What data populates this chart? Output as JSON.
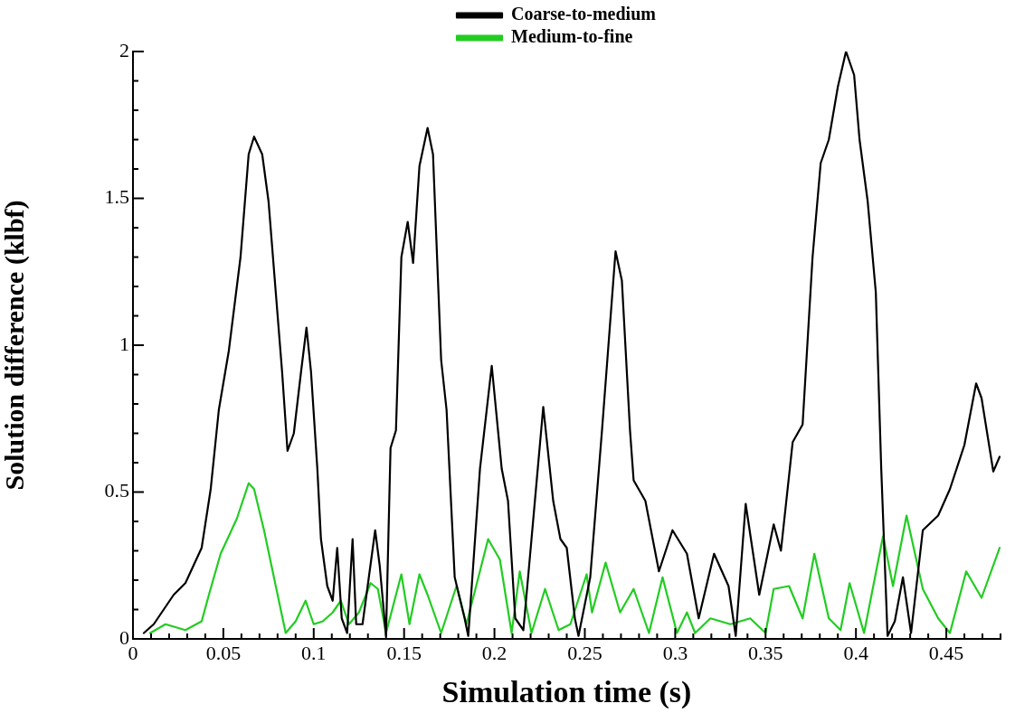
{
  "chart_data": {
    "type": "line",
    "xlabel": "Simulation time (s)",
    "ylabel": "Solution difference (klbf)",
    "xlim": [
      0,
      0.48
    ],
    "xticks": [
      0,
      {
        "value": 0.01,
        "label": null
      },
      {
        "value": 0.02,
        "label": null
      },
      {
        "value": 0.03,
        "label": null
      },
      {
        "value": 0.04,
        "label": null
      },
      0.05,
      {
        "value": 0.06,
        "label": null
      },
      {
        "value": 0.07,
        "label": null
      },
      {
        "value": 0.08,
        "label": null
      },
      {
        "value": 0.09,
        "label": null
      },
      0.1,
      {
        "value": 0.11,
        "label": null
      },
      {
        "value": 0.12,
        "label": null
      },
      {
        "value": 0.13,
        "label": null
      },
      {
        "value": 0.14,
        "label": null
      },
      0.15,
      {
        "value": 0.16,
        "label": null
      },
      {
        "value": 0.17,
        "label": null
      },
      {
        "value": 0.18,
        "label": null
      },
      {
        "value": 0.19,
        "label": null
      },
      0.2,
      {
        "value": 0.21,
        "label": null
      },
      {
        "value": 0.22,
        "label": null
      },
      {
        "value": 0.23,
        "label": null
      },
      {
        "value": 0.24,
        "label": null
      },
      0.25,
      {
        "value": 0.26,
        "label": null
      },
      {
        "value": 0.27,
        "label": null
      },
      {
        "value": 0.28,
        "label": null
      },
      {
        "value": 0.29,
        "label": null
      },
      0.3,
      {
        "value": 0.31,
        "label": null
      },
      {
        "value": 0.32,
        "label": null
      },
      {
        "value": 0.33,
        "label": null
      },
      {
        "value": 0.34,
        "label": null
      },
      0.35,
      {
        "value": 0.36,
        "label": null
      },
      {
        "value": 0.37,
        "label": null
      },
      {
        "value": 0.38,
        "label": null
      },
      {
        "value": 0.39,
        "label": null
      },
      0.4,
      {
        "value": 0.41,
        "label": null
      },
      {
        "value": 0.42,
        "label": null
      },
      {
        "value": 0.43,
        "label": null
      },
      {
        "value": 0.44,
        "label": null
      },
      0.45,
      {
        "value": 0.46,
        "label": null
      },
      {
        "value": 0.47,
        "label": null
      },
      {
        "value": 0.48,
        "label": null
      }
    ],
    "ylim": [
      0,
      2
    ],
    "yticks": [
      0,
      {
        "value": 0.1,
        "label": null
      },
      {
        "value": 0.2,
        "label": null
      },
      {
        "value": 0.3,
        "label": null
      },
      {
        "value": 0.4,
        "label": null
      },
      0.5,
      {
        "value": 0.6,
        "label": null
      },
      {
        "value": 0.7,
        "label": null
      },
      {
        "value": 0.8,
        "label": null
      },
      {
        "value": 0.9,
        "label": null
      },
      1,
      {
        "value": 1.1,
        "label": null
      },
      {
        "value": 1.2,
        "label": null
      },
      {
        "value": 1.3,
        "label": null
      },
      {
        "value": 1.4,
        "label": null
      },
      1.5,
      {
        "value": 1.6,
        "label": null
      },
      {
        "value": 1.7,
        "label": null
      },
      {
        "value": 1.8,
        "label": null
      },
      {
        "value": 1.9,
        "label": null
      },
      2
    ],
    "grid": false,
    "legend": "top",
    "marker": "none",
    "line_style": "solid",
    "series": [
      {
        "name": "Coarse-to-medium",
        "color": "#000000",
        "x": [
          0.006,
          0.0115,
          0.0225,
          0.029,
          0.038,
          0.043,
          0.0475,
          0.053,
          0.0595,
          0.064,
          0.067,
          0.0715,
          0.075,
          0.079,
          0.0825,
          0.0855,
          0.089,
          0.093,
          0.096,
          0.0985,
          0.102,
          0.104,
          0.1075,
          0.1105,
          0.113,
          0.1155,
          0.1185,
          0.1215,
          0.1235,
          0.127,
          0.134,
          0.1365,
          0.14,
          0.1425,
          0.1455,
          0.1485,
          0.152,
          0.155,
          0.1585,
          0.163,
          0.166,
          0.1705,
          0.1735,
          0.178,
          0.1835,
          0.1855,
          0.192,
          0.1985,
          0.204,
          0.2075,
          0.2115,
          0.216,
          0.2205,
          0.227,
          0.2325,
          0.2365,
          0.24,
          0.2445,
          0.2465,
          0.253,
          0.2595,
          0.267,
          0.2705,
          0.275,
          0.277,
          0.2835,
          0.291,
          0.2985,
          0.3065,
          0.313,
          0.3215,
          0.3295,
          0.3335,
          0.339,
          0.3465,
          0.3545,
          0.3585,
          0.365,
          0.3705,
          0.376,
          0.3805,
          0.385,
          0.39,
          0.3945,
          0.399,
          0.402,
          0.4065,
          0.411,
          0.414,
          0.4175,
          0.4215,
          0.426,
          0.4305,
          0.437,
          0.4455,
          0.452,
          0.46,
          0.4665,
          0.4695,
          0.476,
          0.4795
        ],
        "values": [
          0.02,
          0.05,
          0.15,
          0.19,
          0.31,
          0.51,
          0.78,
          0.98,
          1.3,
          1.65,
          1.71,
          1.65,
          1.49,
          1.18,
          0.91,
          0.64,
          0.7,
          0.91,
          1.06,
          0.91,
          0.58,
          0.34,
          0.18,
          0.13,
          0.31,
          0.07,
          0.02,
          0.34,
          0.05,
          0.05,
          0.37,
          0.25,
          0.01,
          0.65,
          0.71,
          1.3,
          1.42,
          1.28,
          1.61,
          1.74,
          1.65,
          0.95,
          0.78,
          0.21,
          0.07,
          0.01,
          0.58,
          0.93,
          0.58,
          0.47,
          0.07,
          0.03,
          0.34,
          0.79,
          0.47,
          0.34,
          0.31,
          0.07,
          0.01,
          0.21,
          0.71,
          1.32,
          1.22,
          0.71,
          0.54,
          0.47,
          0.23,
          0.37,
          0.29,
          0.07,
          0.29,
          0.18,
          0.01,
          0.46,
          0.15,
          0.39,
          0.3,
          0.67,
          0.73,
          1.3,
          1.62,
          1.7,
          1.88,
          2.0,
          1.92,
          1.7,
          1.49,
          1.18,
          0.58,
          0.01,
          0.06,
          0.21,
          0.02,
          0.37,
          0.42,
          0.51,
          0.66,
          0.87,
          0.82,
          0.57,
          0.62
        ]
      },
      {
        "name": "Medium-to-fine",
        "color": "#22cc22",
        "x": [
          0.0095,
          0.018,
          0.029,
          0.038,
          0.042,
          0.0485,
          0.0575,
          0.064,
          0.067,
          0.0725,
          0.079,
          0.0845,
          0.09,
          0.0955,
          0.1,
          0.105,
          0.1105,
          0.115,
          0.1195,
          0.125,
          0.1315,
          0.1355,
          0.14,
          0.1485,
          0.153,
          0.1585,
          0.163,
          0.1705,
          0.179,
          0.1845,
          0.1965,
          0.203,
          0.2095,
          0.214,
          0.2205,
          0.228,
          0.2355,
          0.242,
          0.251,
          0.254,
          0.2615,
          0.2695,
          0.277,
          0.2855,
          0.293,
          0.301,
          0.3065,
          0.311,
          0.3195,
          0.3305,
          0.3415,
          0.35,
          0.3545,
          0.363,
          0.3705,
          0.377,
          0.385,
          0.3915,
          0.3965,
          0.4045,
          0.415,
          0.4205,
          0.428,
          0.437,
          0.4455,
          0.452,
          0.461,
          0.4695,
          0.4795
        ],
        "values": [
          0.02,
          0.05,
          0.03,
          0.06,
          0.15,
          0.29,
          0.41,
          0.53,
          0.51,
          0.37,
          0.18,
          0.02,
          0.06,
          0.13,
          0.05,
          0.06,
          0.09,
          0.13,
          0.05,
          0.09,
          0.19,
          0.17,
          0.02,
          0.22,
          0.05,
          0.22,
          0.15,
          0.02,
          0.18,
          0.05,
          0.34,
          0.27,
          0.02,
          0.23,
          0.02,
          0.17,
          0.03,
          0.05,
          0.22,
          0.09,
          0.26,
          0.09,
          0.17,
          0.02,
          0.21,
          0.02,
          0.09,
          0.02,
          0.07,
          0.05,
          0.07,
          0.02,
          0.17,
          0.18,
          0.07,
          0.29,
          0.07,
          0.03,
          0.19,
          0.02,
          0.35,
          0.18,
          0.42,
          0.17,
          0.07,
          0.02,
          0.23,
          0.14,
          0.31
        ]
      }
    ]
  }
}
